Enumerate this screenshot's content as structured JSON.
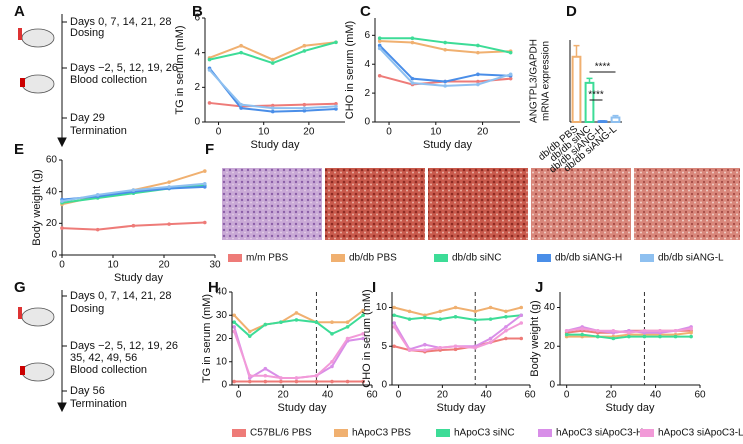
{
  "panel_letters": [
    "A",
    "B",
    "C",
    "D",
    "E",
    "F",
    "G",
    "H",
    "I",
    "J"
  ],
  "timeline_a": [
    "Days 0, 7, 14, 21, 28",
    "Dosing",
    "Days −2, 5, 12, 19, 26",
    "Blood collection",
    "Day 29",
    "Termination"
  ],
  "timeline_g": [
    "Days 0, 7, 14, 21, 28",
    "Dosing",
    "Days −2, 5, 12, 19, 26",
    "35, 42, 49, 56",
    "Blood collection",
    "Day 56",
    "Termination"
  ],
  "legends": [
    [
      {
        "name": "m/m PBS",
        "color": "#ee7b78"
      },
      {
        "name": "db/db PBS",
        "color": "#f0b070"
      },
      {
        "name": "db/db siNC",
        "color": "#3ddc97"
      },
      {
        "name": "db/db siANG-H",
        "color": "#4a8ee8"
      },
      {
        "name": "db/db siANG-L",
        "color": "#8ec0f0"
      }
    ],
    [
      {
        "name": "C57BL/6 PBS",
        "color": "#ee7b78"
      },
      {
        "name": "hApoC3 PBS",
        "color": "#f0b070"
      },
      {
        "name": "hApoC3 siNC",
        "color": "#3ddc97"
      },
      {
        "name": "hApoC3 siApoC3-H",
        "color": "#d88ee8"
      },
      {
        "name": "hApoC3 siApoC3-L",
        "color": "#f29ad8"
      }
    ]
  ],
  "chart_data": [
    {
      "type": "line",
      "x_label": "Study day",
      "y_label": "TG in serum (mM)",
      "x": [
        -2,
        5,
        12,
        19,
        26
      ],
      "xlim": [
        -3,
        28
      ],
      "xticks": [
        0,
        10,
        20
      ],
      "ylim": [
        0,
        6
      ],
      "yticks": [
        0,
        2,
        4,
        6
      ],
      "series": [
        {
          "color": "#ee7b78",
          "values": [
            1.1,
            0.9,
            0.95,
            1.0,
            1.05
          ]
        },
        {
          "color": "#f0b070",
          "values": [
            3.7,
            4.4,
            3.6,
            4.4,
            4.6
          ]
        },
        {
          "color": "#3ddc97",
          "values": [
            3.6,
            4.0,
            3.4,
            4.1,
            4.6
          ]
        },
        {
          "color": "#4a8ee8",
          "values": [
            3.1,
            0.8,
            0.6,
            0.65,
            0.75
          ]
        },
        {
          "color": "#8ec0f0",
          "values": [
            3.0,
            1.0,
            0.8,
            0.8,
            0.9
          ]
        }
      ]
    },
    {
      "type": "line",
      "x_label": "Study day",
      "y_label": "CHO in serum (mM)",
      "x": [
        -2,
        5,
        12,
        19,
        26
      ],
      "xlim": [
        -3,
        28
      ],
      "xticks": [
        0,
        10,
        20
      ],
      "ylim": [
        0,
        7.2
      ],
      "yticks": [
        0,
        2,
        4,
        6
      ],
      "series": [
        {
          "color": "#ee7b78",
          "values": [
            3.2,
            2.6,
            2.8,
            2.8,
            3.0
          ]
        },
        {
          "color": "#f0b070",
          "values": [
            5.6,
            5.5,
            5.0,
            4.8,
            4.9
          ]
        },
        {
          "color": "#3ddc97",
          "values": [
            5.8,
            5.8,
            5.5,
            5.3,
            4.8
          ]
        },
        {
          "color": "#4a8ee8",
          "values": [
            5.3,
            3.0,
            2.8,
            3.3,
            3.2
          ]
        },
        {
          "color": "#8ec0f0",
          "values": [
            5.1,
            2.7,
            2.5,
            2.6,
            3.3
          ]
        }
      ]
    },
    {
      "type": "bar",
      "y_label": [
        "ANGTPL3/GAPDH",
        "mRNA expression"
      ],
      "categories": [
        "db/db PBS",
        "db/db siNC",
        "db/db siANG-H",
        "db/db siANG-L"
      ],
      "values": [
        1.75,
        1.05,
        0.02,
        0.12
      ],
      "errors": [
        0.3,
        0.12,
        0.01,
        0.05
      ],
      "colors": [
        "#f0b070",
        "#3ddc97",
        "#4a8ee8",
        "#8ec0f0"
      ],
      "ylim": [
        0,
        2.2
      ],
      "annotations": [
        "****",
        "****"
      ]
    },
    {
      "type": "line",
      "x_label": "Study day",
      "y_label": "Body weight (g)",
      "x": [
        0,
        7,
        14,
        21,
        28
      ],
      "xlim": [
        0,
        30
      ],
      "xticks": [
        0,
        10,
        20,
        30
      ],
      "ylim": [
        0,
        60
      ],
      "yticks": [
        0,
        20,
        40,
        60
      ],
      "series": [
        {
          "color": "#ee7b78",
          "values": [
            17,
            16,
            18.5,
            19.5,
            20.5
          ]
        },
        {
          "color": "#f0b070",
          "values": [
            32,
            37,
            41,
            46,
            53
          ]
        },
        {
          "color": "#3ddc97",
          "values": [
            33,
            36,
            39,
            42,
            44
          ]
        },
        {
          "color": "#4a8ee8",
          "values": [
            35,
            37,
            40,
            42,
            43
          ]
        },
        {
          "color": "#8ec0f0",
          "values": [
            34,
            38,
            41,
            43,
            45
          ]
        }
      ]
    },
    {
      "type": "line",
      "x_label": "Study day",
      "y_label": "TG in serum (mM)",
      "x": [
        -2,
        5,
        12,
        19,
        26,
        35,
        42,
        49,
        56
      ],
      "xlim": [
        -3,
        60
      ],
      "xticks": [
        0,
        20,
        40,
        60
      ],
      "ylim": [
        0,
        40
      ],
      "yticks": [
        0,
        10,
        20,
        30,
        40
      ],
      "vline_x": 35,
      "series": [
        {
          "color": "#ee7b78",
          "values": [
            1.5,
            1.5,
            1.5,
            1.5,
            1.5,
            1.5,
            1.5,
            1.5,
            1.5
          ]
        },
        {
          "color": "#f0b070",
          "values": [
            30,
            23,
            26,
            27,
            31,
            27,
            27,
            27,
            32
          ]
        },
        {
          "color": "#3ddc97",
          "values": [
            27,
            21,
            26,
            27,
            28,
            27,
            22,
            25,
            30
          ]
        },
        {
          "color": "#d88ee8",
          "values": [
            25,
            3,
            7,
            3,
            3,
            4,
            8,
            19,
            20
          ]
        },
        {
          "color": "#f29ad8",
          "values": [
            23,
            4,
            4,
            3,
            3,
            4,
            10,
            20,
            22
          ]
        }
      ]
    },
    {
      "type": "line",
      "x_label": "Study day",
      "y_label": "CHO in serum (mM)",
      "x": [
        -2,
        5,
        12,
        19,
        26,
        35,
        42,
        49,
        56
      ],
      "xlim": [
        -3,
        60
      ],
      "xticks": [
        0,
        20,
        40,
        60
      ],
      "ylim": [
        0,
        12
      ],
      "yticks": [
        0,
        5,
        10
      ],
      "vline_x": 35,
      "series": [
        {
          "color": "#ee7b78",
          "values": [
            5,
            4.5,
            4.3,
            4.5,
            4.6,
            5,
            5.5,
            6,
            6
          ]
        },
        {
          "color": "#f0b070",
          "values": [
            10,
            9.5,
            9,
            9.5,
            10,
            9.5,
            10,
            9.5,
            10
          ]
        },
        {
          "color": "#3ddc97",
          "values": [
            9,
            8.5,
            8.7,
            8.5,
            8.8,
            8.4,
            8.5,
            8.8,
            9
          ]
        },
        {
          "color": "#d88ee8",
          "values": [
            8,
            4.6,
            5.2,
            4.8,
            5,
            5,
            6,
            7.5,
            9
          ]
        },
        {
          "color": "#f29ad8",
          "values": [
            7.5,
            4.5,
            4.5,
            4.8,
            5,
            4.8,
            5.5,
            7,
            8
          ]
        }
      ]
    },
    {
      "type": "line",
      "x_label": "Study day",
      "y_label": "Body weight (g)",
      "x": [
        0,
        7,
        14,
        21,
        28,
        35,
        42,
        49,
        56
      ],
      "xlim": [
        -3,
        60
      ],
      "xticks": [
        0,
        20,
        40,
        60
      ],
      "ylim": [
        0,
        48
      ],
      "yticks": [
        0,
        20,
        40
      ],
      "vline_x": 35,
      "series": [
        {
          "color": "#ee7b78",
          "values": [
            27,
            28,
            27,
            27,
            28,
            28,
            28,
            28,
            28
          ]
        },
        {
          "color": "#f0b070",
          "values": [
            25,
            25,
            25,
            25,
            26,
            26,
            26,
            26,
            27
          ]
        },
        {
          "color": "#3ddc97",
          "values": [
            26,
            26,
            25,
            24,
            25,
            25,
            25,
            25,
            25
          ]
        },
        {
          "color": "#d88ee8",
          "values": [
            28,
            30,
            28,
            27,
            28,
            27,
            27,
            28,
            30
          ]
        },
        {
          "color": "#f29ad8",
          "values": [
            28,
            29,
            28,
            28,
            27,
            28,
            28,
            28,
            29
          ]
        }
      ]
    }
  ]
}
